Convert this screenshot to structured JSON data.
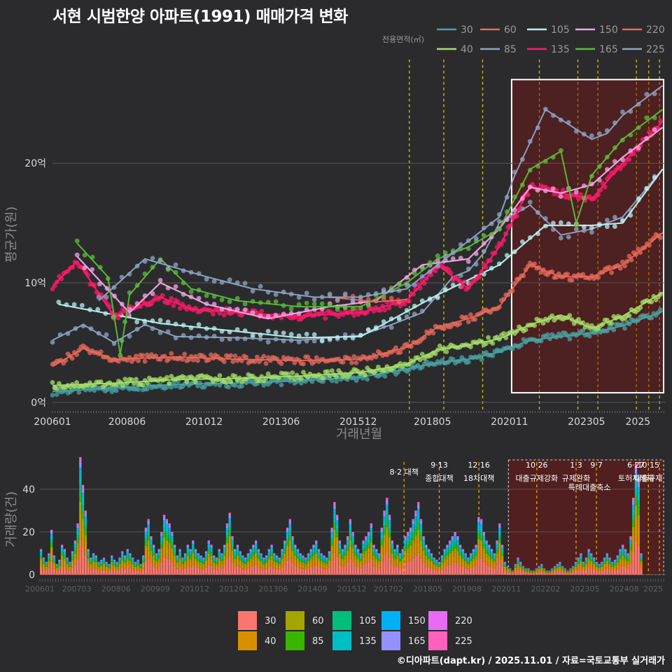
{
  "title": "서현 시범한양 아파트(1991) 매매가격 변화",
  "credit": "©디아파트(dapt.kr) / 2025.11.01 / 자료=국토교통부 실거래가",
  "colors": {
    "30": "#4aa3a3",
    "40": "#a6e06a",
    "60": "#e96a5b",
    "85": "#8fa5c8",
    "105": "#b8f0f0",
    "135": "#ff1a6a",
    "150": "#f2a6e6",
    "165": "#5dbd3a",
    "220": "#e96a5b",
    "225": "#8fa5c8"
  },
  "chart_data": [
    {
      "type": "line",
      "name": "price",
      "title": "서현 시범한양 아파트(1991) 매매가격 변화",
      "xlabel": "거래년월",
      "ylabel": "평균가(원)",
      "legend_title": "전용면적(㎡)",
      "legend_position": "top-right",
      "xlim": [
        2006.0,
        2025.9
      ],
      "ylim": [
        -0.6,
        27.8
      ],
      "x_tick_labels": [
        "200601",
        "200806",
        "201012",
        "201306",
        "201512",
        "201805",
        "202011",
        "202305",
        "2025"
      ],
      "x_tick_values": [
        2006.0,
        2008.42,
        2010.92,
        2013.42,
        2015.92,
        2018.33,
        2020.83,
        2023.33,
        2025.0
      ],
      "y_tick_labels": [
        "0억",
        "10억",
        "20억"
      ],
      "y_tick_values": [
        0,
        10,
        20
      ],
      "policy_lines": [
        2017.58,
        2018.7,
        2019.96,
        2021.8,
        2023.05,
        2023.7,
        2024.95,
        2025.35,
        2025.7
      ],
      "highlight_range": [
        2020.9,
        2025.9
      ],
      "highlight_ylim": [
        0.8,
        27.0
      ],
      "series": [
        {
          "name": "30",
          "x": [
            2006.0,
            2008.0,
            2010.0,
            2012.0,
            2014.0,
            2016.0,
            2017.5,
            2018.5,
            2019.5,
            2020.5,
            2021.5,
            2022.5,
            2023.5,
            2024.5,
            2025.8
          ],
          "y": [
            0.9,
            1.2,
            1.5,
            1.6,
            1.8,
            2.1,
            2.8,
            3.3,
            3.6,
            4.2,
            5.2,
            5.5,
            5.8,
            6.4,
            7.6
          ]
        },
        {
          "name": "40",
          "x": [
            2006.0,
            2008.0,
            2010.0,
            2012.0,
            2014.0,
            2016.0,
            2017.5,
            2018.5,
            2019.5,
            2020.5,
            2021.5,
            2022.5,
            2023.5,
            2024.5,
            2025.8
          ],
          "y": [
            1.4,
            1.6,
            1.9,
            2.0,
            2.2,
            2.5,
            3.2,
            4.4,
            4.8,
            5.3,
            6.5,
            7.3,
            6.2,
            7.2,
            9.2
          ]
        },
        {
          "name": "60",
          "x": [
            2006.0,
            2007.0,
            2008.0,
            2010.0,
            2012.0,
            2014.0,
            2016.0,
            2017.5,
            2018.5,
            2019.5,
            2020.5,
            2021.5,
            2022.5,
            2023.5,
            2024.5,
            2025.8
          ],
          "y": [
            3.0,
            4.5,
            3.6,
            3.8,
            3.6,
            3.5,
            3.6,
            4.6,
            6.3,
            7.0,
            8.0,
            11.5,
            10.5,
            10.5,
            11.5,
            14.2
          ]
        },
        {
          "name": "85",
          "x": [
            2006.0,
            2007.0,
            2008.0,
            2009.0,
            2010.0,
            2012.0,
            2014.0,
            2016.0,
            2017.0,
            2018.0,
            2018.5,
            2019.0,
            2019.5,
            2020.0,
            2020.5,
            2021.5,
            2022.5,
            2023.5,
            2024.5,
            2025.8
          ],
          "y": [
            5.2,
            6.5,
            5.0,
            6.5,
            5.5,
            5.4,
            5.2,
            5.6,
            6.5,
            7.5,
            9.0,
            10.5,
            11.0,
            12.5,
            15.0,
            16.5,
            14.0,
            14.5,
            15.5,
            19.5
          ]
        },
        {
          "name": "105",
          "x": [
            2006.2,
            2009.5,
            2014.0,
            2016.0,
            2018.5,
            2020.5,
            2022.0,
            2023.5,
            2024.5,
            2025.8
          ],
          "y": [
            8.2,
            6.6,
            5.4,
            5.5,
            9.0,
            11.5,
            14.8,
            14.8,
            15.0,
            19.5
          ]
        },
        {
          "name": "135",
          "x": [
            2006.0,
            2006.8,
            2008.0,
            2009.5,
            2010.5,
            2012.0,
            2014.0,
            2016.0,
            2017.5,
            2018.5,
            2019.5,
            2020.5,
            2021.5,
            2022.5,
            2023.5,
            2024.5,
            2025.8
          ],
          "y": [
            9.7,
            11.8,
            7.2,
            8.8,
            7.8,
            7.5,
            7.2,
            7.5,
            8.5,
            11.5,
            9.5,
            13.0,
            18.0,
            17.5,
            17.0,
            20.0,
            23.5
          ]
        },
        {
          "name": "150",
          "x": [
            2006.8,
            2008.5,
            2009.5,
            2011.0,
            2013.0,
            2015.0,
            2016.5,
            2018.0,
            2019.5,
            2020.5,
            2021.5,
            2022.5,
            2023.5,
            2024.5,
            2025.8
          ],
          "y": [
            12.2,
            7.5,
            10.0,
            8.2,
            7.0,
            8.0,
            8.5,
            11.5,
            12.0,
            14.5,
            18.0,
            17.5,
            18.2,
            20.5,
            23.0
          ]
        },
        {
          "name": "165",
          "x": [
            2006.8,
            2007.8,
            2008.2,
            2008.5,
            2009.5,
            2010.5,
            2012.0,
            2014.0,
            2016.0,
            2017.5,
            2018.5,
            2019.5,
            2020.5,
            2021.5,
            2022.5,
            2023.0,
            2023.5,
            2024.5,
            2025.8
          ],
          "y": [
            13.3,
            10.5,
            4.0,
            9.0,
            12.0,
            9.5,
            8.5,
            8.0,
            8.0,
            10.0,
            12.0,
            13.0,
            14.5,
            19.5,
            21.0,
            15.0,
            19.0,
            22.0,
            24.5
          ]
        },
        {
          "name": "220",
          "x": [
            2015.0,
            2016.5,
            2017.5
          ],
          "y": [
            8.8,
            8.4,
            8.6
          ]
        },
        {
          "name": "225",
          "x": [
            2007.5,
            2009.0,
            2011.0,
            2012.5,
            2014.5,
            2016.0,
            2017.5,
            2018.5,
            2019.5,
            2020.5,
            2021.0,
            2022.0,
            2023.5,
            2024.0,
            2024.5,
            2025.8
          ],
          "y": [
            8.5,
            12.0,
            10.5,
            9.5,
            8.8,
            8.8,
            9.5,
            11.5,
            13.5,
            15.5,
            19.0,
            24.5,
            22.0,
            22.5,
            24.0,
            26.5
          ]
        }
      ]
    },
    {
      "type": "bar",
      "name": "volume",
      "ylabel": "거래량(건)",
      "stacked": true,
      "xlim": [
        2006.0,
        2025.9
      ],
      "ylim": [
        0,
        56
      ],
      "x_tick_labels": [
        "200601",
        "200703",
        "200806",
        "200909",
        "201012",
        "201203",
        "201306",
        "201409",
        "201512",
        "201702",
        "201805",
        "201908",
        "202011",
        "202202",
        "202305",
        "202408",
        "2025"
      ],
      "y_tick_labels": [
        "0",
        "20",
        "40"
      ],
      "y_tick_values": [
        0,
        20,
        40
      ],
      "legend_position": "bottom",
      "legend_entries": [
        "30",
        "40",
        "60",
        "85",
        "105",
        "135",
        "150",
        "165",
        "220",
        "225"
      ],
      "legend_colors": [
        "#f8766d",
        "#d89000",
        "#a3a500",
        "#39b600",
        "#00bf7d",
        "#00bfc4",
        "#00b0f6",
        "#9590ff",
        "#e76bf3",
        "#ff62bc"
      ],
      "annotations": [
        {
          "x": 2017.58,
          "line1": "8·2 대책",
          "line2": ""
        },
        {
          "x": 2018.7,
          "line1": "9·13",
          "line2": "종합대책"
        },
        {
          "x": 2019.96,
          "line1": "12·16",
          "line2": "18차대책"
        },
        {
          "x": 2021.8,
          "line1": "10·26",
          "line2": "대출규제강화"
        },
        {
          "x": 2023.05,
          "line1": "1·3",
          "line2": "규제완화"
        },
        {
          "x": 2023.7,
          "line1": "9·7",
          "line2": "특례대출축소"
        },
        {
          "x": 2024.95,
          "line1": "6·27",
          "line2": "토허제해제"
        },
        {
          "x": 2025.35,
          "line1": "10·15",
          "line2": "대출규제"
        }
      ],
      "monthly_totals": [
        12,
        8,
        6,
        10,
        21,
        9,
        5,
        7,
        14,
        12,
        8,
        6,
        11,
        16,
        24,
        55,
        42,
        30,
        12,
        8,
        10,
        9,
        6,
        7,
        8,
        6,
        5,
        9,
        7,
        6,
        8,
        11,
        9,
        12,
        10,
        8,
        6,
        7,
        5,
        9,
        22,
        26,
        18,
        14,
        10,
        12,
        20,
        28,
        26,
        24,
        20,
        14,
        9,
        12,
        8,
        10,
        14,
        12,
        16,
        12,
        10,
        9,
        8,
        11,
        16,
        14,
        9,
        8,
        12,
        10,
        14,
        24,
        29,
        18,
        12,
        14,
        11,
        9,
        8,
        10,
        12,
        14,
        16,
        12,
        10,
        8,
        9,
        12,
        14,
        10,
        9,
        8,
        12,
        16,
        22,
        26,
        18,
        14,
        12,
        10,
        9,
        8,
        10,
        12,
        14,
        16,
        12,
        10,
        9,
        8,
        11,
        22,
        34,
        28,
        16,
        12,
        14,
        18,
        26,
        20,
        14,
        12,
        10,
        16,
        18,
        20,
        24,
        14,
        12,
        10,
        22,
        30,
        36,
        28,
        16,
        12,
        14,
        10,
        12,
        18,
        20,
        22,
        26,
        30,
        34,
        26,
        18,
        14,
        12,
        10,
        8,
        7,
        6,
        9,
        12,
        14,
        16,
        18,
        20,
        18,
        14,
        12,
        10,
        8,
        10,
        12,
        14,
        27,
        26,
        20,
        16,
        14,
        12,
        10,
        16,
        24,
        14,
        6,
        4,
        3,
        2,
        5,
        8,
        6,
        4,
        3,
        3,
        2,
        2,
        3,
        4,
        5,
        3,
        2,
        2,
        3,
        4,
        5,
        6,
        4,
        3,
        2,
        3,
        4,
        6,
        8,
        10,
        6,
        8,
        12,
        10,
        8,
        6,
        5,
        6,
        8,
        10,
        8,
        6,
        7,
        9,
        12,
        14,
        12,
        10,
        18,
        36,
        52,
        45,
        10
      ]
    }
  ],
  "bottom_legend": {
    "row1": [
      "30",
      "60",
      "105",
      "150",
      "220"
    ],
    "row2": [
      "40",
      "85",
      "135",
      "165",
      "225"
    ]
  }
}
